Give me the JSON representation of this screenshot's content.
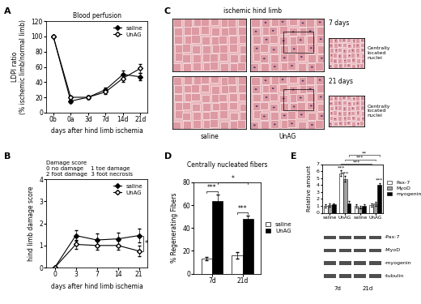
{
  "chart_data": [
    {
      "type": "line",
      "annotations": [
        "A"
      ],
      "title": "Blood perfusion",
      "xlabel": "days after hind limb ischemia",
      "ylabel": "LDPI ratio\n(% ischemic limb/normal limb)",
      "categories": [
        "0b",
        "0a",
        "3d",
        "7d",
        "14d",
        "21d"
      ],
      "series": [
        {
          "name": "saline",
          "color": "#000000",
          "marker": "filled_diamond",
          "values": [
            100,
            15,
            20,
            30,
            50,
            47
          ],
          "errors": [
            0,
            2,
            2,
            3,
            5,
            5
          ]
        },
        {
          "name": "UnAG",
          "color": "#000000",
          "marker": "open_diamond",
          "values": [
            100,
            20,
            20,
            27,
            45,
            58
          ],
          "errors": [
            0,
            2,
            2,
            3,
            5,
            6
          ]
        }
      ],
      "ylim": [
        0,
        120
      ],
      "yticks": [
        0,
        20,
        40,
        60,
        80,
        100,
        120
      ],
      "legend": "upper right"
    },
    {
      "type": "line",
      "annotations": [
        "B"
      ],
      "title": "Damage score",
      "subtitle": "0 no damage    1 toe damage\n2 foot damage  3 foot necrosis",
      "xlabel": "days after hind limb ischemia",
      "ylabel": "hind limb damage score",
      "categories": [
        "0",
        "3",
        "7",
        "14",
        "21"
      ],
      "series": [
        {
          "name": "saline",
          "color": "#000000",
          "marker": "filled_diamond",
          "values": [
            0,
            1.45,
            1.25,
            1.3,
            1.45
          ],
          "errors": [
            0,
            0.25,
            0.3,
            0.3,
            0.3
          ]
        },
        {
          "name": "UnAG",
          "color": "#000000",
          "marker": "open_diamond",
          "values": [
            0,
            1.05,
            1.0,
            1.0,
            0.75
          ],
          "errors": [
            0,
            0.2,
            0.2,
            0.2,
            0.25
          ]
        }
      ],
      "ylim": [
        0,
        4
      ],
      "yticks": [
        0,
        1,
        2,
        3,
        4
      ],
      "legend": "upper right",
      "significance": [
        {
          "text": "*",
          "category": "21"
        }
      ]
    },
    {
      "type": "bar",
      "annotations": [
        "D"
      ],
      "title": "Centrally nucleated fibers",
      "ylabel": "% Regenerating Fibers",
      "categories": [
        "7d",
        "21d"
      ],
      "series": [
        {
          "name": "saline",
          "color": "#ffffff",
          "values": [
            13,
            16
          ],
          "errors": [
            1.5,
            2.5
          ]
        },
        {
          "name": "UnAG",
          "color": "#000000",
          "values": [
            64,
            48
          ],
          "errors": [
            5,
            3
          ]
        }
      ],
      "ylim": [
        0,
        80
      ],
      "yticks": [
        0,
        20,
        40,
        60,
        80
      ],
      "legend": "right",
      "significance": [
        {
          "text": "***",
          "categories": [
            "7d"
          ]
        },
        {
          "text": "***",
          "categories": [
            "21d"
          ]
        },
        {
          "text": "*",
          "categories": [
            "7d",
            "21d"
          ],
          "series": "UnAG"
        }
      ]
    },
    {
      "type": "bar",
      "annotations": [
        "E"
      ],
      "ylabel": "Relative amount",
      "categories": [
        "saline",
        "UnAG",
        "saline",
        "UnAG"
      ],
      "groups": [
        "7d",
        "7d",
        "21d",
        "21d"
      ],
      "series": [
        {
          "name": "Pax-7",
          "color": "#ffffff",
          "values": [
            1.0,
            5.7,
            1.0,
            1.1
          ],
          "errors": [
            0.2,
            0.4,
            0.2,
            0.2
          ]
        },
        {
          "name": "MyoD",
          "color": "#a0a0a0",
          "values": [
            1.1,
            4.9,
            0.8,
            1.3
          ],
          "errors": [
            0.2,
            0.4,
            0.2,
            0.3
          ]
        },
        {
          "name": "myogenin",
          "color": "#000000",
          "values": [
            1.2,
            1.4,
            1.0,
            4.0
          ],
          "errors": [
            0.2,
            0.3,
            0.2,
            0.3
          ]
        }
      ],
      "ylim": [
        0,
        7
      ],
      "yticks": [
        0,
        1,
        2,
        3,
        4,
        5,
        6,
        7
      ],
      "legend": "right",
      "significance": [
        {
          "text": "***",
          "series": "Pax-7",
          "category": "UnAG",
          "groups": [
            "7d"
          ]
        },
        {
          "text": "***",
          "series": "MyoD",
          "category": "UnAG",
          "groups": [
            "7d"
          ]
        },
        {
          "text": "***",
          "series": "myogenin",
          "category": "UnAG",
          "groups": [
            "21d"
          ]
        },
        {
          "text": "***",
          "series": "Pax-7",
          "category": "UnAG",
          "groups": [
            "7d",
            "21d"
          ]
        },
        {
          "text": "***",
          "series": "MyoD",
          "category": "UnAG",
          "groups": [
            "7d",
            "21d"
          ]
        },
        {
          "text": "**",
          "series": "myogenin",
          "category": "UnAG",
          "groups": [
            "7d",
            "21d"
          ]
        }
      ]
    }
  ],
  "histology": {
    "annotations": [
      "C"
    ],
    "title": "ischemic hind limb",
    "rows": [
      "7 days",
      "21 days"
    ],
    "columns": [
      "saline",
      "UnAG"
    ],
    "inset_label": "Centrally\nlocated\nnuclei"
  },
  "western_blot": {
    "bands": [
      "-Pax-7",
      "-MyoD",
      "-myogenin",
      "-tubulin"
    ]
  }
}
